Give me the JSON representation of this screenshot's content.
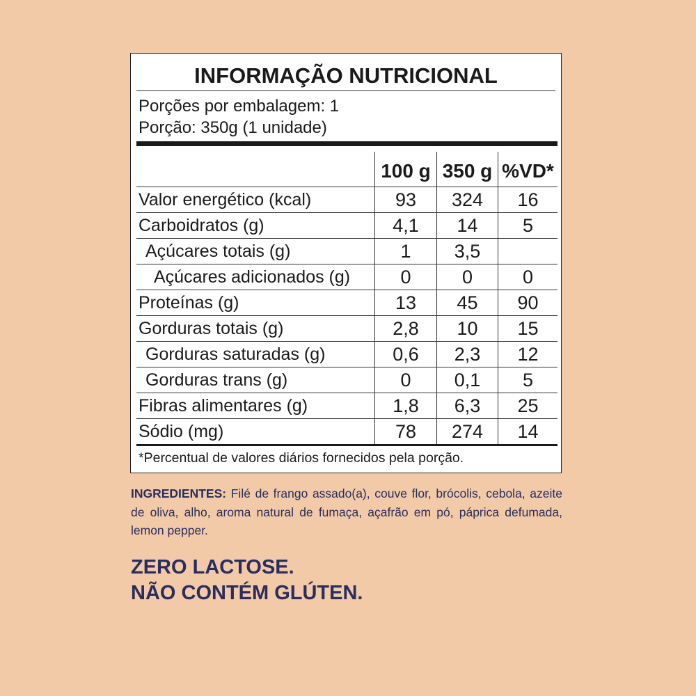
{
  "colors": {
    "background": "#f2caa8",
    "text_navy": "#2b2d5c"
  },
  "label": {
    "title": "INFORMAÇÃO NUTRICIONAL",
    "servings_per_package": "Porções por embalagem: 1",
    "serving_size": "Porção: 350g (1 unidade)",
    "columns": [
      "100 g",
      "350 g",
      "%VD*"
    ],
    "rows": [
      {
        "name": "Valor energético (kcal)",
        "level": 1,
        "v100": "93",
        "v350": "324",
        "vd": "16"
      },
      {
        "name": "Carboidratos (g)",
        "level": 1,
        "v100": "4,1",
        "v350": "14",
        "vd": "5"
      },
      {
        "name": "Açúcares totais (g)",
        "level": 2,
        "v100": "1",
        "v350": "3,5",
        "vd": ""
      },
      {
        "name": "Açúcares adicionados (g)",
        "level": 3,
        "v100": "0",
        "v350": "0",
        "vd": "0"
      },
      {
        "name": "Proteínas (g)",
        "level": 1,
        "v100": "13",
        "v350": "45",
        "vd": "90"
      },
      {
        "name": "Gorduras totais (g)",
        "level": 1,
        "v100": "2,8",
        "v350": "10",
        "vd": "15"
      },
      {
        "name": "Gorduras saturadas (g)",
        "level": 2,
        "v100": "0,6",
        "v350": "2,3",
        "vd": "12"
      },
      {
        "name": "Gorduras trans (g)",
        "level": 2,
        "v100": "0",
        "v350": "0,1",
        "vd": "5"
      },
      {
        "name": "Fibras alimentares (g)",
        "level": 1,
        "v100": "1,8",
        "v350": "6,3",
        "vd": "25"
      },
      {
        "name": "Sódio (mg)",
        "level": 1,
        "v100": "78",
        "v350": "274",
        "vd": "14"
      }
    ],
    "footnote": "*Percentual de valores diários fornecidos pela porção."
  },
  "ingredients": {
    "heading": "INGREDIENTES:",
    "text": " Filé de frango assado(a), couve flor, brócolis, cebola, azeite de oliva, alho, aroma natural de fumaça, açafrão em pó, páprica defumada, lemon pepper."
  },
  "claims": [
    "ZERO LACTOSE.",
    "NÃO CONTÉM GLÚTEN."
  ]
}
